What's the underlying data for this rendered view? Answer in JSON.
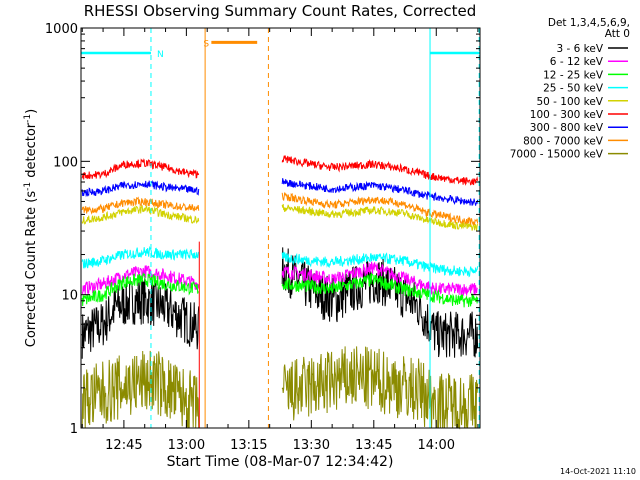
{
  "chart_data": {
    "type": "line",
    "title": "RHESSI Observing Summary Count Rates, Corrected",
    "xlabel": "Start Time (08-Mar-07 12:34:42)",
    "ylabel_main": "Corrected Count Rate (s",
    "ylabel_sup1": "-1",
    "ylabel_mid": " detector",
    "ylabel_sup2": "-1",
    "ylabel_end": ")",
    "y_scale": "log",
    "ylim": [
      1,
      1000
    ],
    "y_ticks": [
      {
        "value": 1,
        "label": "1"
      },
      {
        "value": 10,
        "label": "10"
      },
      {
        "value": 100,
        "label": "100"
      },
      {
        "value": 1000,
        "label": "1000"
      }
    ],
    "x_ticks": [
      {
        "value": 765,
        "label": "12:45"
      },
      {
        "value": 780,
        "label": "13:00"
      },
      {
        "value": 795,
        "label": "13:15"
      },
      {
        "value": 810,
        "label": "13:30"
      },
      {
        "value": 825,
        "label": "13:45"
      },
      {
        "value": 840,
        "label": "14:00"
      }
    ],
    "xlim": [
      754.7,
      850.5
    ],
    "legend_header": [
      "Det 1,3,4,5,6,9,",
      "Att 0"
    ],
    "legend_position": "right",
    "series": [
      {
        "name": "3 - 6 keV",
        "color": "#000000",
        "pre": [
          [
            755,
            5
          ],
          [
            760,
            6
          ],
          [
            763,
            8
          ],
          [
            767,
            9
          ],
          [
            770,
            9
          ],
          [
            775,
            8
          ],
          [
            778,
            7
          ],
          [
            783,
            5.5
          ]
        ],
        "post": [
          [
            803,
            16
          ],
          [
            808,
            12
          ],
          [
            812,
            10
          ],
          [
            816,
            9
          ],
          [
            820,
            11
          ],
          [
            826,
            13
          ],
          [
            832,
            10
          ],
          [
            836,
            8
          ],
          [
            840,
            5
          ],
          [
            845,
            5
          ],
          [
            850,
            5
          ]
        ],
        "jitter": 0.18
      },
      {
        "name": "6 - 12 keV",
        "color": "#ff00ff",
        "pre": [
          [
            755,
            11
          ],
          [
            760,
            12
          ],
          [
            765,
            14
          ],
          [
            770,
            15
          ],
          [
            775,
            14
          ],
          [
            783,
            12
          ]
        ],
        "post": [
          [
            803,
            15
          ],
          [
            810,
            14
          ],
          [
            815,
            13
          ],
          [
            825,
            16
          ],
          [
            830,
            14
          ],
          [
            836,
            12
          ],
          [
            840,
            11
          ],
          [
            845,
            11
          ],
          [
            850,
            11
          ]
        ],
        "jitter": 0.05
      },
      {
        "name": "12 - 25 keV",
        "color": "#00ff00",
        "pre": [
          [
            755,
            9
          ],
          [
            760,
            10
          ],
          [
            765,
            12.5
          ],
          [
            770,
            13
          ],
          [
            775,
            12
          ],
          [
            783,
            11
          ]
        ],
        "post": [
          [
            803,
            12
          ],
          [
            810,
            11.5
          ],
          [
            815,
            11
          ],
          [
            825,
            13
          ],
          [
            832,
            11
          ],
          [
            838,
            10
          ],
          [
            845,
            9
          ],
          [
            850,
            9
          ]
        ],
        "jitter": 0.05
      },
      {
        "name": "25 - 50 keV",
        "color": "#00ffff",
        "pre": [
          [
            755,
            17
          ],
          [
            760,
            18
          ],
          [
            765,
            20
          ],
          [
            770,
            21
          ],
          [
            775,
            20
          ],
          [
            783,
            20
          ]
        ],
        "post": [
          [
            803,
            19
          ],
          [
            810,
            18
          ],
          [
            815,
            17.5
          ],
          [
            825,
            19
          ],
          [
            832,
            18
          ],
          [
            838,
            16
          ],
          [
            845,
            15
          ],
          [
            850,
            15
          ]
        ],
        "jitter": 0.04
      },
      {
        "name": "50 - 100 keV",
        "color": "#d2d200",
        "pre": [
          [
            755,
            36
          ],
          [
            760,
            38
          ],
          [
            765,
            42
          ],
          [
            770,
            44
          ],
          [
            775,
            40
          ],
          [
            783,
            36
          ]
        ],
        "post": [
          [
            803,
            45
          ],
          [
            810,
            42
          ],
          [
            815,
            40
          ],
          [
            825,
            43
          ],
          [
            832,
            41
          ],
          [
            838,
            36
          ],
          [
            845,
            33
          ],
          [
            850,
            32
          ]
        ],
        "jitter": 0.03
      },
      {
        "name": "100 - 300 keV",
        "color": "#ff0000",
        "pre": [
          [
            755,
            78
          ],
          [
            760,
            80
          ],
          [
            765,
            95
          ],
          [
            770,
            97
          ],
          [
            775,
            90
          ],
          [
            780,
            82
          ],
          [
            783,
            80
          ]
        ],
        "post": [
          [
            803,
            105
          ],
          [
            810,
            95
          ],
          [
            815,
            90
          ],
          [
            825,
            95
          ],
          [
            832,
            88
          ],
          [
            838,
            78
          ],
          [
            845,
            72
          ],
          [
            850,
            70
          ]
        ],
        "jitter": 0.03
      },
      {
        "name": "300 - 800 keV",
        "color": "#0000ff",
        "pre": [
          [
            755,
            58
          ],
          [
            760,
            60
          ],
          [
            765,
            66
          ],
          [
            770,
            68
          ],
          [
            775,
            64
          ],
          [
            783,
            60
          ]
        ],
        "post": [
          [
            803,
            70
          ],
          [
            810,
            65
          ],
          [
            815,
            62
          ],
          [
            825,
            66
          ],
          [
            832,
            61
          ],
          [
            838,
            55
          ],
          [
            845,
            51
          ],
          [
            850,
            49
          ]
        ],
        "jitter": 0.03
      },
      {
        "name": "800 - 7000 keV",
        "color": "#ff8c00",
        "pre": [
          [
            755,
            43
          ],
          [
            760,
            44
          ],
          [
            765,
            49
          ],
          [
            770,
            50
          ],
          [
            775,
            47
          ],
          [
            783,
            44
          ]
        ],
        "post": [
          [
            803,
            55
          ],
          [
            810,
            50
          ],
          [
            815,
            47
          ],
          [
            825,
            52
          ],
          [
            832,
            48
          ],
          [
            838,
            41
          ],
          [
            845,
            37
          ],
          [
            850,
            35
          ]
        ],
        "jitter": 0.03
      },
      {
        "name": "7000 - 15000 keV",
        "color": "#8b8b00",
        "pre": [
          [
            755,
            1.6
          ],
          [
            766,
            2.1
          ],
          [
            772,
            2.3
          ],
          [
            776,
            1.9
          ],
          [
            783,
            1.4
          ]
        ],
        "post": [
          [
            803,
            1.8
          ],
          [
            812,
            2.1
          ],
          [
            820,
            2.4
          ],
          [
            828,
            2.2
          ],
          [
            836,
            1.9
          ],
          [
            841,
            1.5
          ],
          [
            850,
            1.5
          ]
        ],
        "jitter": 0.25
      }
    ],
    "gap": {
      "start": 783.3,
      "end": 803.2
    },
    "spike": {
      "color": "#ff0000",
      "x": 783.1,
      "y_from": 25,
      "y_to": 1
    },
    "annotations": [
      {
        "label": "N",
        "color": "#00ffff",
        "x_from": 754.7,
        "x_to": 771.5,
        "y": 650
      },
      {
        "label": "S",
        "color": "#ff8c00",
        "x_from": 786,
        "x_to": 797,
        "y": 780
      },
      {
        "label": "",
        "color": "#00ffff",
        "x_from": 838.5,
        "x_to": 850.5,
        "y": 650
      }
    ],
    "vlines": [
      {
        "x": 771.5,
        "color": "#00ffff",
        "dashed": true
      },
      {
        "x": 784.5,
        "color": "#ff8c00",
        "dashed": false
      },
      {
        "x": 799.7,
        "color": "#ff8c00",
        "dashed": true
      },
      {
        "x": 838.5,
        "color": "#00ffff",
        "dashed": false
      },
      {
        "x": 850.3,
        "color": "#00ffff",
        "dashed": true
      }
    ],
    "grid": false
  },
  "footer": {
    "timestamp": "14-Oct-2021 11:10"
  }
}
